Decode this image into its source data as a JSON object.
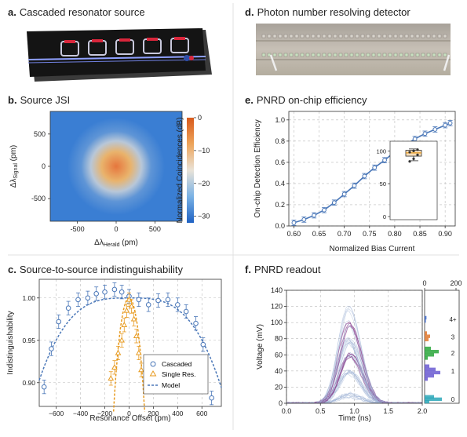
{
  "panels": {
    "a": {
      "label": "a.",
      "title": "Cascaded resonator source"
    },
    "b": {
      "label": "b.",
      "title": "Source JSI"
    },
    "c": {
      "label": "c.",
      "title": "Source-to-source indistinguishability"
    },
    "d": {
      "label": "d.",
      "title": "Photon number resolving detector"
    },
    "e": {
      "label": "e.",
      "title": "PNRD on-chip efficiency"
    },
    "f": {
      "label": "f.",
      "title": "PNRD readout"
    }
  },
  "colors": {
    "chip": "#1a1a1a",
    "ring": "#c8c8dc",
    "ring_pad": "#d9263b",
    "waveguide": "#8fa0ff",
    "blue_marker": "#2f4ea8",
    "cascaded": "#4a77b8",
    "single": "#e79a1f",
    "traces": "#9fb3d6",
    "traces_dark": "#8e3f8d",
    "hist": [
      "#2aa7b8",
      "#6a5ad1",
      "#2aa73b",
      "#e0782e",
      "#3a66c8"
    ]
  },
  "chart_data": [
    {
      "panel": "b",
      "type": "heatmap",
      "xlabel_main": "Δλ",
      "xlabel_sub": "Herald",
      "xlabel_unit": " (pm)",
      "ylabel_main": "Δλ",
      "ylabel_sub": "Signal",
      "ylabel_unit": " (pm)",
      "x_ticks": [
        "-500",
        "0",
        "500"
      ],
      "x_tick_values": [
        -500,
        0,
        500
      ],
      "y_ticks": [
        "500",
        "0",
        "-500"
      ],
      "y_tick_values": [
        500,
        0,
        -500
      ],
      "xlim": [
        -850,
        850
      ],
      "ylim": [
        -850,
        850
      ],
      "colorbar_label": "Normalized Coincidences (dB)",
      "colorbar_ticks": [
        "0",
        "−10",
        "−20",
        "−30"
      ],
      "colorbar_tick_values": [
        0,
        -10,
        -20,
        -30
      ],
      "colorbar_range": [
        -32,
        0
      ]
    },
    {
      "panel": "c",
      "type": "scatter",
      "xlabel": "Resonance Offset (pm)",
      "ylabel": "Indistinguishability",
      "xlim": [
        -740,
        760
      ],
      "ylim": [
        0.872,
        1.022
      ],
      "x_ticks": [
        "−600",
        "−400",
        "−200",
        "0",
        "200",
        "400",
        "600"
      ],
      "x_tick_values": [
        -600,
        -400,
        -200,
        0,
        200,
        400,
        600
      ],
      "y_ticks": [
        "0.90",
        "0.95",
        "1.00"
      ],
      "y_tick_values": [
        0.9,
        0.95,
        1.0
      ],
      "legend": [
        "Cascaded",
        "Single Res.",
        "Model"
      ],
      "series": [
        {
          "name": "Cascaded",
          "x": [
            -700,
            -640,
            -580,
            -500,
            -420,
            -340,
            -270,
            -200,
            -120,
            -60,
            0,
            80,
            160,
            240,
            320,
            400,
            470,
            550,
            610,
            680
          ],
          "y": [
            0.895,
            0.94,
            0.972,
            0.988,
            0.998,
            1.0,
            1.005,
            1.007,
            1.01,
            1.007,
            1.002,
            0.998,
            0.992,
            0.997,
            0.998,
            0.992,
            0.984,
            0.97,
            0.945,
            0.882
          ],
          "err": 0.008
        },
        {
          "name": "Single Res.",
          "x": [
            -150,
            -120,
            -90,
            -60,
            -40,
            -20,
            0,
            20,
            40,
            60,
            80,
            100
          ],
          "y": [
            0.905,
            0.918,
            0.935,
            0.95,
            0.968,
            0.985,
            0.998,
            0.99,
            0.975,
            0.955,
            0.935,
            0.915
          ],
          "err": 0.008
        }
      ],
      "models": [
        {
          "name": "Model",
          "form": "cascaded",
          "width": 780
        },
        {
          "name": "Model",
          "form": "single",
          "width": 120
        }
      ]
    },
    {
      "panel": "e",
      "type": "line",
      "xlabel": "Normalized Bias Current",
      "ylabel": "On-chip Detection Efficiency",
      "xlim": [
        0.59,
        0.92
      ],
      "ylim": [
        0,
        1.08
      ],
      "x_ticks": [
        "0.60",
        "0.65",
        "0.70",
        "0.75",
        "0.80",
        "0.85",
        "0.90"
      ],
      "x_tick_values": [
        0.6,
        0.65,
        0.7,
        0.75,
        0.8,
        0.85,
        0.9
      ],
      "y_ticks": [
        "0.0",
        "0.2",
        "0.4",
        "0.6",
        "0.8",
        "1.0"
      ],
      "y_tick_values": [
        0,
        0.2,
        0.4,
        0.6,
        0.8,
        1.0
      ],
      "series": [
        {
          "name": "",
          "x": [
            0.6,
            0.62,
            0.64,
            0.66,
            0.68,
            0.7,
            0.72,
            0.74,
            0.76,
            0.78,
            0.8,
            0.82,
            0.84,
            0.86,
            0.88,
            0.9,
            0.91
          ],
          "y": [
            0.03,
            0.06,
            0.1,
            0.15,
            0.22,
            0.3,
            0.38,
            0.47,
            0.55,
            0.62,
            0.7,
            0.76,
            0.82,
            0.87,
            0.91,
            0.95,
            0.97
          ],
          "err": 0.025
        }
      ],
      "inset": {
        "type": "box",
        "y_ticks": [
          "0",
          "50",
          "100"
        ],
        "y_tick_values": [
          0,
          50,
          100
        ],
        "ylim": [
          0,
          110
        ],
        "median": 97,
        "q1": 92,
        "q3": 101,
        "whisker_low": 85,
        "whisker_high": 103,
        "points": [
          84,
          88,
          94,
          98,
          100,
          102
        ]
      }
    },
    {
      "panel": "f",
      "type": "line",
      "xlabel": "Time (ns)",
      "ylabel": "Voltage (mV)",
      "xlim": [
        0,
        2
      ],
      "ylim": [
        0,
        140
      ],
      "x_ticks": [
        "0.0",
        "0.5",
        "1.0",
        "1.5",
        "2.0"
      ],
      "x_tick_values": [
        0,
        0.5,
        1,
        1.5,
        2
      ],
      "y_ticks": [
        "0",
        "20",
        "40",
        "60",
        "80",
        "100",
        "120",
        "140"
      ],
      "y_tick_values": [
        0,
        20,
        40,
        60,
        80,
        100,
        120,
        140
      ],
      "peak_time": 0.92,
      "pulse_groups": [
        {
          "level": 10,
          "count": 10
        },
        {
          "level": 38,
          "count": 10
        },
        {
          "level": 58,
          "count": 10
        },
        {
          "level": 77,
          "count": 10
        },
        {
          "level": 98,
          "count": 7
        },
        {
          "level": 118,
          "count": 4
        }
      ],
      "histogram": {
        "top_ticks": [
          "0",
          "200"
        ],
        "top_tick_values": [
          0,
          200
        ],
        "xlim": [
          0,
          220
        ],
        "labels": [
          "0",
          "1",
          "2",
          "3",
          "4+"
        ],
        "label_levels": [
          5,
          40,
          62,
          82,
          104
        ],
        "bins": [
          {
            "y": 2,
            "count": 30,
            "group": 0
          },
          {
            "y": 5,
            "count": 110,
            "group": 0
          },
          {
            "y": 8,
            "count": 60,
            "group": 0
          },
          {
            "y": 30,
            "count": 20,
            "group": 1
          },
          {
            "y": 34,
            "count": 60,
            "group": 1
          },
          {
            "y": 38,
            "count": 100,
            "group": 1
          },
          {
            "y": 42,
            "count": 70,
            "group": 1
          },
          {
            "y": 46,
            "count": 30,
            "group": 1
          },
          {
            "y": 56,
            "count": 20,
            "group": 2
          },
          {
            "y": 60,
            "count": 60,
            "group": 2
          },
          {
            "y": 64,
            "count": 90,
            "group": 2
          },
          {
            "y": 68,
            "count": 40,
            "group": 2
          },
          {
            "y": 79,
            "count": 25,
            "group": 3
          },
          {
            "y": 83,
            "count": 35,
            "group": 3
          },
          {
            "y": 87,
            "count": 15,
            "group": 3
          },
          {
            "y": 102,
            "count": 8,
            "group": 4
          },
          {
            "y": 106,
            "count": 12,
            "group": 4
          }
        ]
      }
    }
  ]
}
